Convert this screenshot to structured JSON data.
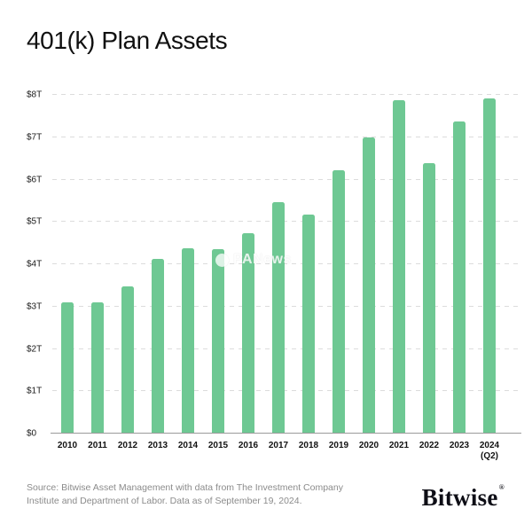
{
  "title": "401(k) Plan Assets",
  "watermark": {
    "text": "PANews"
  },
  "footer": {
    "source_line1": "Source: Bitwise Asset Management with data from The Investment Company",
    "source_line2": "Institute and Department of Labor. Data as of September 19, 2024.",
    "brand": "Bitwise",
    "brand_mark": "®"
  },
  "colors": {
    "bar": "#6ec893",
    "gridline": "#dcdcdc",
    "axis": "#9a9a9a",
    "title_text": "#101010",
    "footer_text": "#8b8b8b",
    "background": "#ffffff"
  },
  "chart_data": {
    "type": "bar",
    "title": "401(k) Plan Assets",
    "unit": "trillions of USD",
    "categories": [
      "2010",
      "2011",
      "2012",
      "2013",
      "2014",
      "2015",
      "2016",
      "2017",
      "2018",
      "2019",
      "2020",
      "2021",
      "2022",
      "2023",
      "2024 (Q2)"
    ],
    "values": [
      3.08,
      3.08,
      3.46,
      4.1,
      4.36,
      4.33,
      4.71,
      5.45,
      5.15,
      6.2,
      6.98,
      7.85,
      6.37,
      7.35,
      7.9
    ],
    "xlabel": "",
    "ylabel": "",
    "ylim": [
      0,
      8
    ],
    "y_ticks": [
      "$0",
      "$1T",
      "$2T",
      "$3T",
      "$4T",
      "$5T",
      "$6T",
      "$7T",
      "$8T"
    ],
    "grid": "horizontal-dashed",
    "legend": "none"
  }
}
